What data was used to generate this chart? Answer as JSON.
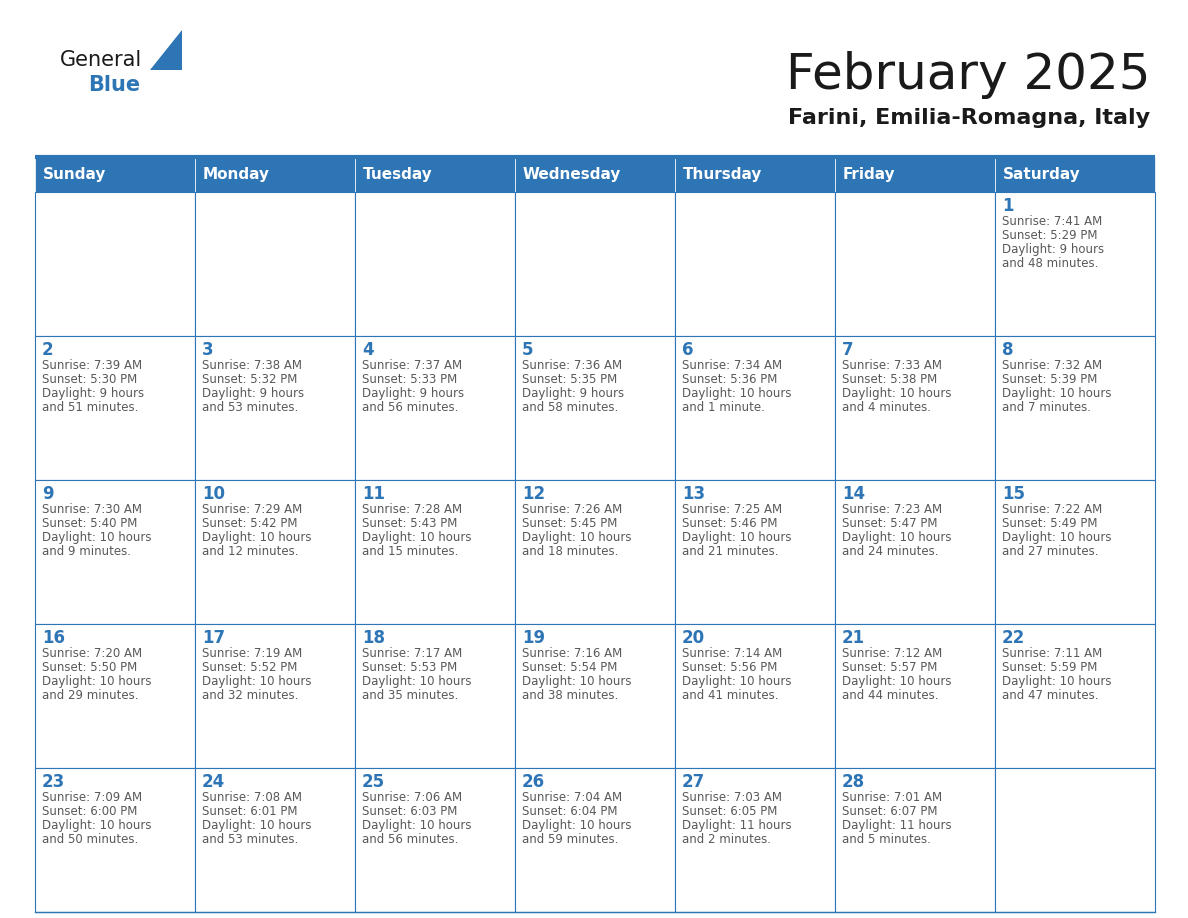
{
  "title": "February 2025",
  "subtitle": "Farini, Emilia-Romagna, Italy",
  "days_of_week": [
    "Sunday",
    "Monday",
    "Tuesday",
    "Wednesday",
    "Thursday",
    "Friday",
    "Saturday"
  ],
  "header_bg": "#2E75B6",
  "header_text": "#FFFFFF",
  "cell_bg_white": "#FFFFFF",
  "grid_line_color": "#2E75B6",
  "day_number_color": "#2E75B6",
  "info_text_color": "#595959",
  "title_color": "#1A1A1A",
  "logo_general_color": "#1A1A1A",
  "logo_blue_color": "#2E75B6",
  "calendar_data": [
    [
      null,
      null,
      null,
      null,
      null,
      null,
      {
        "day": 1,
        "sunrise": "7:41 AM",
        "sunset": "5:29 PM",
        "daylight": "9 hours and 48 minutes."
      }
    ],
    [
      {
        "day": 2,
        "sunrise": "7:39 AM",
        "sunset": "5:30 PM",
        "daylight": "9 hours and 51 minutes."
      },
      {
        "day": 3,
        "sunrise": "7:38 AM",
        "sunset": "5:32 PM",
        "daylight": "9 hours and 53 minutes."
      },
      {
        "day": 4,
        "sunrise": "7:37 AM",
        "sunset": "5:33 PM",
        "daylight": "9 hours and 56 minutes."
      },
      {
        "day": 5,
        "sunrise": "7:36 AM",
        "sunset": "5:35 PM",
        "daylight": "9 hours and 58 minutes."
      },
      {
        "day": 6,
        "sunrise": "7:34 AM",
        "sunset": "5:36 PM",
        "daylight": "10 hours and 1 minute."
      },
      {
        "day": 7,
        "sunrise": "7:33 AM",
        "sunset": "5:38 PM",
        "daylight": "10 hours and 4 minutes."
      },
      {
        "day": 8,
        "sunrise": "7:32 AM",
        "sunset": "5:39 PM",
        "daylight": "10 hours and 7 minutes."
      }
    ],
    [
      {
        "day": 9,
        "sunrise": "7:30 AM",
        "sunset": "5:40 PM",
        "daylight": "10 hours and 9 minutes."
      },
      {
        "day": 10,
        "sunrise": "7:29 AM",
        "sunset": "5:42 PM",
        "daylight": "10 hours and 12 minutes."
      },
      {
        "day": 11,
        "sunrise": "7:28 AM",
        "sunset": "5:43 PM",
        "daylight": "10 hours and 15 minutes."
      },
      {
        "day": 12,
        "sunrise": "7:26 AM",
        "sunset": "5:45 PM",
        "daylight": "10 hours and 18 minutes."
      },
      {
        "day": 13,
        "sunrise": "7:25 AM",
        "sunset": "5:46 PM",
        "daylight": "10 hours and 21 minutes."
      },
      {
        "day": 14,
        "sunrise": "7:23 AM",
        "sunset": "5:47 PM",
        "daylight": "10 hours and 24 minutes."
      },
      {
        "day": 15,
        "sunrise": "7:22 AM",
        "sunset": "5:49 PM",
        "daylight": "10 hours and 27 minutes."
      }
    ],
    [
      {
        "day": 16,
        "sunrise": "7:20 AM",
        "sunset": "5:50 PM",
        "daylight": "10 hours and 29 minutes."
      },
      {
        "day": 17,
        "sunrise": "7:19 AM",
        "sunset": "5:52 PM",
        "daylight": "10 hours and 32 minutes."
      },
      {
        "day": 18,
        "sunrise": "7:17 AM",
        "sunset": "5:53 PM",
        "daylight": "10 hours and 35 minutes."
      },
      {
        "day": 19,
        "sunrise": "7:16 AM",
        "sunset": "5:54 PM",
        "daylight": "10 hours and 38 minutes."
      },
      {
        "day": 20,
        "sunrise": "7:14 AM",
        "sunset": "5:56 PM",
        "daylight": "10 hours and 41 minutes."
      },
      {
        "day": 21,
        "sunrise": "7:12 AM",
        "sunset": "5:57 PM",
        "daylight": "10 hours and 44 minutes."
      },
      {
        "day": 22,
        "sunrise": "7:11 AM",
        "sunset": "5:59 PM",
        "daylight": "10 hours and 47 minutes."
      }
    ],
    [
      {
        "day": 23,
        "sunrise": "7:09 AM",
        "sunset": "6:00 PM",
        "daylight": "10 hours and 50 minutes."
      },
      {
        "day": 24,
        "sunrise": "7:08 AM",
        "sunset": "6:01 PM",
        "daylight": "10 hours and 53 minutes."
      },
      {
        "day": 25,
        "sunrise": "7:06 AM",
        "sunset": "6:03 PM",
        "daylight": "10 hours and 56 minutes."
      },
      {
        "day": 26,
        "sunrise": "7:04 AM",
        "sunset": "6:04 PM",
        "daylight": "10 hours and 59 minutes."
      },
      {
        "day": 27,
        "sunrise": "7:03 AM",
        "sunset": "6:05 PM",
        "daylight": "11 hours and 2 minutes."
      },
      {
        "day": 28,
        "sunrise": "7:01 AM",
        "sunset": "6:07 PM",
        "daylight": "11 hours and 5 minutes."
      },
      null
    ]
  ]
}
